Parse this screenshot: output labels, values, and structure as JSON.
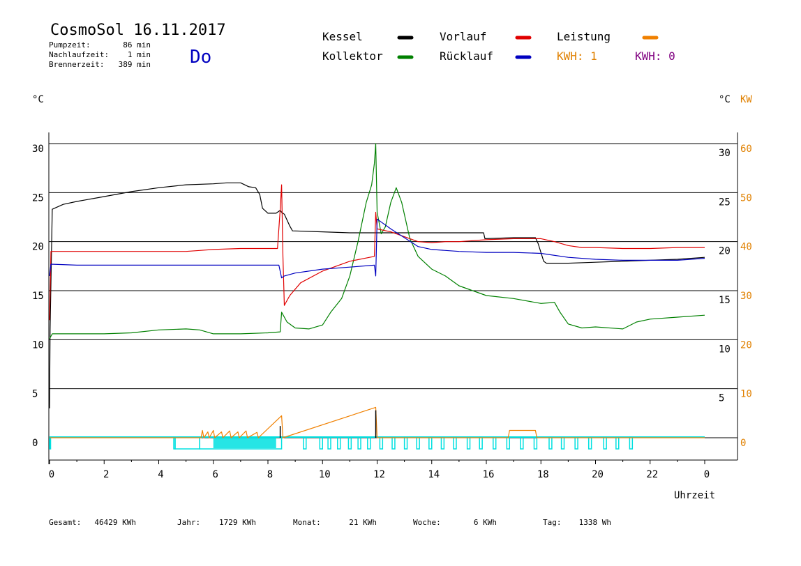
{
  "header": {
    "title": "CosmoSol 16.11.2017",
    "day": "Do",
    "stats": [
      {
        "label": "Pumpzeit:",
        "value": "86 min"
      },
      {
        "label": "Nachlaufzeit:",
        "value": "1 min"
      },
      {
        "label": "Brennerzeit:",
        "value": "389 min"
      }
    ]
  },
  "legend": {
    "kessel": "Kessel",
    "kollektor": "Kollektor",
    "vorlauf": "Vorlauf",
    "ruecklauf": "Rücklauf",
    "leistung": "Leistung",
    "kwh1": "KWH: 1",
    "kwh0": "KWH: 0"
  },
  "axes": {
    "left_unit": "°C",
    "right_unit_c": "°C",
    "right_unit_kw": "KW",
    "x_label": "Uhrzeit"
  },
  "footer": [
    {
      "label": "Gesamt:",
      "value": "46429 KWh"
    },
    {
      "label": "Jahr:",
      "value": "1729 KWh"
    },
    {
      "label": "Monat:",
      "value": "21 KWh"
    },
    {
      "label": "Woche:",
      "value": "6 KWh"
    },
    {
      "label": "Tag:",
      "value": "1338 Wh"
    }
  ],
  "colors": {
    "kessel": "#000000",
    "kollektor": "#008000",
    "vorlauf": "#e00000",
    "ruecklauf": "#0000c0",
    "leistung": "#f08000",
    "kwh1": "#e08000",
    "kwh0": "#800080",
    "pump": "#00e0e0",
    "day": "#0000c0"
  },
  "chart_data": {
    "type": "line",
    "xlabel": "Uhrzeit",
    "ylabel": "°C",
    "y2label": "KW",
    "xlim": [
      0,
      24
    ],
    "ylim": [
      0,
      30
    ],
    "y2lim": [
      0,
      60
    ],
    "x_ticks": [
      "0",
      "2",
      "4",
      "6",
      "8",
      "10",
      "12",
      "14",
      "16",
      "18",
      "20",
      "22",
      "0"
    ],
    "x_tick_values": [
      0,
      2,
      4,
      6,
      8,
      10,
      12,
      14,
      16,
      18,
      20,
      22,
      24
    ],
    "y_ticks": [
      "0",
      "5",
      "10",
      "15",
      "20",
      "25",
      "30"
    ],
    "y_tick_values": [
      0,
      5,
      10,
      15,
      20,
      25,
      30
    ],
    "y2_ticks": [
      "0",
      "10",
      "20",
      "30",
      "40",
      "50",
      "60"
    ],
    "y2_tick_values": [
      0,
      10,
      20,
      30,
      40,
      50,
      60
    ],
    "grid": true,
    "series": [
      {
        "name": "Kessel",
        "color": "#000000",
        "points": [
          [
            0,
            3
          ],
          [
            0.02,
            11
          ],
          [
            0.1,
            23.3
          ],
          [
            0.5,
            23.8
          ],
          [
            1,
            24.1
          ],
          [
            2,
            24.6
          ],
          [
            3,
            25.1
          ],
          [
            4,
            25.5
          ],
          [
            5,
            25.8
          ],
          [
            6,
            25.9
          ],
          [
            6.5,
            26
          ],
          [
            7,
            26
          ],
          [
            7.3,
            25.6
          ],
          [
            7.55,
            25.5
          ],
          [
            7.7,
            24.8
          ],
          [
            7.8,
            23.4
          ],
          [
            8,
            22.9
          ],
          [
            8.3,
            22.9
          ],
          [
            8.45,
            23.2
          ],
          [
            8.5,
            23
          ],
          [
            8.6,
            22.8
          ],
          [
            8.8,
            21.6
          ],
          [
            8.9,
            21.1
          ],
          [
            10,
            21
          ],
          [
            11,
            20.9
          ],
          [
            11.9,
            20.9
          ],
          [
            13,
            20.9
          ],
          [
            14,
            20.9
          ],
          [
            15,
            20.9
          ],
          [
            15.9,
            20.9
          ],
          [
            15.95,
            20.3
          ],
          [
            17,
            20.4
          ],
          [
            17.8,
            20.4
          ],
          [
            17.9,
            19.8
          ],
          [
            18.1,
            18
          ],
          [
            18.2,
            17.8
          ],
          [
            19,
            17.8
          ],
          [
            20,
            17.9
          ],
          [
            21,
            18
          ],
          [
            22,
            18.1
          ],
          [
            23,
            18.2
          ],
          [
            24,
            18.4
          ]
        ]
      },
      {
        "name": "Kollektor",
        "color": "#008000",
        "points": [
          [
            0,
            10.1
          ],
          [
            0.1,
            10.6
          ],
          [
            1,
            10.6
          ],
          [
            2,
            10.6
          ],
          [
            3,
            10.7
          ],
          [
            4,
            11
          ],
          [
            5,
            11.1
          ],
          [
            5.5,
            11
          ],
          [
            6,
            10.6
          ],
          [
            7,
            10.6
          ],
          [
            8,
            10.7
          ],
          [
            8.45,
            10.8
          ],
          [
            8.5,
            12.8
          ],
          [
            8.7,
            11.8
          ],
          [
            9,
            11.2
          ],
          [
            9.5,
            11.1
          ],
          [
            10,
            11.5
          ],
          [
            10.3,
            12.8
          ],
          [
            10.7,
            14.2
          ],
          [
            11,
            16.5
          ],
          [
            11.3,
            20
          ],
          [
            11.6,
            24
          ],
          [
            11.8,
            25.8
          ],
          [
            11.9,
            28
          ],
          [
            11.95,
            30
          ],
          [
            12,
            23
          ],
          [
            12.15,
            20.8
          ],
          [
            12.3,
            21.5
          ],
          [
            12.5,
            24
          ],
          [
            12.7,
            25.5
          ],
          [
            12.9,
            24
          ],
          [
            13.2,
            20.3
          ],
          [
            13.5,
            18.5
          ],
          [
            14,
            17.2
          ],
          [
            14.5,
            16.5
          ],
          [
            15,
            15.5
          ],
          [
            15.5,
            15
          ],
          [
            16,
            14.5
          ],
          [
            17,
            14.2
          ],
          [
            18,
            13.7
          ],
          [
            18.5,
            13.8
          ],
          [
            18.7,
            12.8
          ],
          [
            19,
            11.6
          ],
          [
            19.5,
            11.2
          ],
          [
            20,
            11.3
          ],
          [
            21,
            11.1
          ],
          [
            21.5,
            11.8
          ],
          [
            22,
            12.1
          ],
          [
            23,
            12.3
          ],
          [
            24,
            12.5
          ]
        ]
      },
      {
        "name": "Vorlauf",
        "color": "#e00000",
        "points": [
          [
            0,
            12
          ],
          [
            0.05,
            19
          ],
          [
            1,
            19
          ],
          [
            2,
            19
          ],
          [
            3,
            19
          ],
          [
            4,
            19
          ],
          [
            5,
            19
          ],
          [
            5.5,
            19.1
          ],
          [
            6,
            19.2
          ],
          [
            7,
            19.3
          ],
          [
            8,
            19.3
          ],
          [
            8.35,
            19.3
          ],
          [
            8.45,
            23.3
          ],
          [
            8.5,
            25.8
          ],
          [
            8.55,
            18.5
          ],
          [
            8.6,
            13.5
          ],
          [
            8.8,
            14.5
          ],
          [
            9.2,
            15.8
          ],
          [
            10,
            17
          ],
          [
            11,
            18
          ],
          [
            11.9,
            18.5
          ],
          [
            11.95,
            23
          ],
          [
            12,
            21.3
          ],
          [
            12.5,
            21
          ],
          [
            13,
            20.5
          ],
          [
            13.5,
            20
          ],
          [
            14,
            19.9
          ],
          [
            14.5,
            20
          ],
          [
            15,
            20
          ],
          [
            16,
            20.2
          ],
          [
            17,
            20.3
          ],
          [
            18,
            20.3
          ],
          [
            18.5,
            20
          ],
          [
            19,
            19.6
          ],
          [
            19.5,
            19.4
          ],
          [
            20,
            19.4
          ],
          [
            21,
            19.3
          ],
          [
            22,
            19.3
          ],
          [
            23,
            19.4
          ],
          [
            24,
            19.4
          ]
        ]
      },
      {
        "name": "Rücklauf",
        "color": "#0000c0",
        "points": [
          [
            0,
            16.5
          ],
          [
            0.05,
            17.7
          ],
          [
            1,
            17.6
          ],
          [
            2,
            17.6
          ],
          [
            3,
            17.6
          ],
          [
            4,
            17.6
          ],
          [
            5,
            17.6
          ],
          [
            6,
            17.6
          ],
          [
            7,
            17.6
          ],
          [
            8,
            17.6
          ],
          [
            8.4,
            17.6
          ],
          [
            8.5,
            16.3
          ],
          [
            8.6,
            16.5
          ],
          [
            9,
            16.8
          ],
          [
            10,
            17.2
          ],
          [
            11,
            17.4
          ],
          [
            11.9,
            17.6
          ],
          [
            11.95,
            16.5
          ],
          [
            12,
            22.3
          ],
          [
            12.5,
            21.3
          ],
          [
            13,
            20.4
          ],
          [
            13.5,
            19.5
          ],
          [
            14,
            19.2
          ],
          [
            15,
            19
          ],
          [
            16,
            18.9
          ],
          [
            17,
            18.9
          ],
          [
            18,
            18.8
          ],
          [
            19,
            18.4
          ],
          [
            20,
            18.2
          ],
          [
            21,
            18.1
          ],
          [
            22,
            18.1
          ],
          [
            23,
            18.1
          ],
          [
            24,
            18.3
          ]
        ]
      },
      {
        "name": "Leistung",
        "color": "#f08000",
        "axis": "kw",
        "points": [
          [
            0,
            0
          ],
          [
            5.55,
            0
          ],
          [
            5.6,
            1.5
          ],
          [
            5.65,
            0
          ],
          [
            5.8,
            1.2
          ],
          [
            5.85,
            0
          ],
          [
            6.0,
            1.5
          ],
          [
            6.05,
            0
          ],
          [
            6.3,
            1.2
          ],
          [
            6.35,
            0
          ],
          [
            6.6,
            1.4
          ],
          [
            6.65,
            0
          ],
          [
            6.9,
            1.2
          ],
          [
            6.95,
            0
          ],
          [
            7.2,
            1.4
          ],
          [
            7.25,
            0
          ],
          [
            7.6,
            1.1
          ],
          [
            7.65,
            0
          ],
          [
            8.5,
            4.5
          ],
          [
            8.55,
            0
          ],
          [
            11.95,
            6.2
          ],
          [
            12.0,
            0
          ],
          [
            16.8,
            0
          ],
          [
            16.85,
            1.5
          ],
          [
            17.8,
            1.5
          ],
          [
            17.85,
            0
          ],
          [
            24,
            0
          ]
        ]
      }
    ],
    "pump_on_intervals": [
      [
        0,
        0.02
      ],
      [
        4.55,
        4.6
      ],
      [
        4.6,
        5.5
      ],
      [
        5.5,
        8.5
      ],
      [
        9.3,
        9.4
      ],
      [
        9.9,
        10.0
      ],
      [
        10.2,
        10.3
      ],
      [
        10.55,
        10.65
      ],
      [
        10.95,
        11.05
      ],
      [
        11.3,
        11.4
      ],
      [
        11.65,
        11.75
      ],
      [
        12.1,
        12.2
      ],
      [
        12.55,
        12.65
      ],
      [
        13.0,
        13.1
      ],
      [
        13.45,
        13.55
      ],
      [
        13.9,
        14.0
      ],
      [
        14.35,
        14.45
      ],
      [
        14.8,
        14.9
      ],
      [
        15.3,
        15.4
      ],
      [
        15.75,
        15.85
      ],
      [
        16.25,
        16.35
      ],
      [
        16.75,
        16.85
      ],
      [
        17.25,
        17.35
      ],
      [
        17.75,
        17.85
      ],
      [
        18.3,
        18.4
      ],
      [
        18.75,
        18.85
      ],
      [
        19.25,
        19.35
      ],
      [
        19.75,
        19.85
      ],
      [
        20.3,
        20.4
      ],
      [
        20.75,
        20.85
      ],
      [
        21.25,
        21.35
      ]
    ],
    "burner_spikes": [
      [
        8.45,
        1.2
      ],
      [
        11.95,
        2.8
      ]
    ]
  }
}
